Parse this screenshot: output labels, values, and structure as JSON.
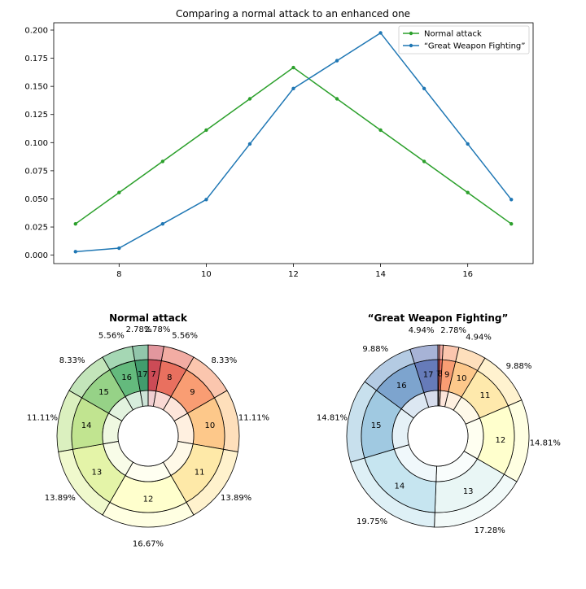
{
  "chart_data": [
    {
      "type": "line",
      "title": "Comparing a normal attack to an enhanced one",
      "x": [
        7,
        8,
        9,
        10,
        11,
        12,
        13,
        14,
        15,
        16,
        17
      ],
      "xticks": [
        8,
        10,
        12,
        14,
        16
      ],
      "yticks": [
        "0.000",
        "0.025",
        "0.050",
        "0.075",
        "0.100",
        "0.125",
        "0.150",
        "0.175",
        "0.200"
      ],
      "xlim": [
        6.5,
        17.5
      ],
      "ylim": [
        -0.0075,
        0.2065
      ],
      "legend_position": "top-right",
      "series": [
        {
          "name": "Normal attack",
          "color": "#2ca02c",
          "values": [
            0.0278,
            0.0556,
            0.0833,
            0.1111,
            0.1389,
            0.1667,
            0.1389,
            0.1111,
            0.0833,
            0.0556,
            0.0278
          ]
        },
        {
          "name": "“Great Weapon Fighting”",
          "color": "#1f77b4",
          "values": [
            0.0031,
            0.0062,
            0.0278,
            0.0494,
            0.0988,
            0.1481,
            0.1728,
            0.1975,
            0.1481,
            0.0988,
            0.0494
          ]
        }
      ]
    },
    {
      "type": "pie",
      "title": "Normal attack",
      "categories": [
        "7",
        "8",
        "9",
        "10",
        "11",
        "12",
        "13",
        "14",
        "15",
        "16",
        "17"
      ],
      "values": [
        2.78,
        5.56,
        8.33,
        11.11,
        13.89,
        16.67,
        13.89,
        11.11,
        8.33,
        5.56,
        2.78
      ],
      "labels": [
        "2.78%",
        "5.56%",
        "8.33%",
        "11.11%",
        "13.89%",
        "16.67%",
        "13.89%",
        "11.11%",
        "8.33%",
        "5.56%",
        "2.78%"
      ],
      "colormap": "RdYlGn"
    },
    {
      "type": "pie",
      "title": "“Great Weapon Fighting”",
      "categories": [
        "7",
        "8",
        "9",
        "10",
        "11",
        "12",
        "13",
        "14",
        "15",
        "16",
        "17"
      ],
      "values": [
        0.31,
        0.62,
        2.78,
        4.94,
        9.88,
        14.81,
        17.28,
        19.75,
        14.81,
        9.88,
        4.94
      ],
      "labels": [
        "",
        "",
        "2.78%",
        "4.94%",
        "9.88%",
        "14.81%",
        "17.28%",
        "19.75%",
        "14.81%",
        "9.88%",
        "4.94%"
      ],
      "colormap": "RdYlBu"
    }
  ]
}
